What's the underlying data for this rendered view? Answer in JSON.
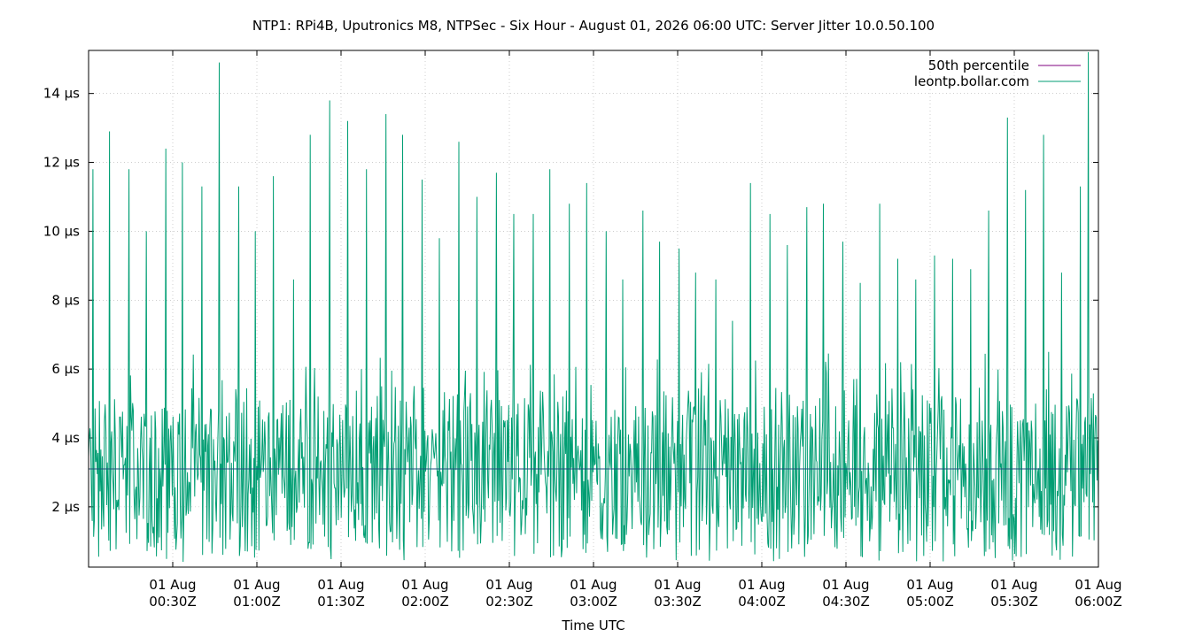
{
  "chart_data": {
    "type": "line",
    "title": "NTP1: RPi4B, Uputronics M8, NTPSec - Six Hour - August 01, 2026 06:00 UTC: Server Jitter 10.0.50.100",
    "xlabel": "Time UTC",
    "ylabel": "",
    "x_range_minutes": [
      0,
      360
    ],
    "ylim": [
      0.25,
      15.25
    ],
    "y_unit": "µs",
    "y_ticks": [
      {
        "value": 2,
        "label": "2 µs"
      },
      {
        "value": 4,
        "label": "4 µs"
      },
      {
        "value": 6,
        "label": "6 µs"
      },
      {
        "value": 8,
        "label": "8 µs"
      },
      {
        "value": 10,
        "label": "10 µs"
      },
      {
        "value": 12,
        "label": "12 µs"
      },
      {
        "value": 14,
        "label": "14 µs"
      }
    ],
    "x_ticks": [
      {
        "minute": 30,
        "line1": "01 Aug",
        "line2": "00:30Z"
      },
      {
        "minute": 60,
        "line1": "01 Aug",
        "line2": "01:00Z"
      },
      {
        "minute": 90,
        "line1": "01 Aug",
        "line2": "01:30Z"
      },
      {
        "minute": 120,
        "line1": "01 Aug",
        "line2": "02:00Z"
      },
      {
        "minute": 150,
        "line1": "01 Aug",
        "line2": "02:30Z"
      },
      {
        "minute": 180,
        "line1": "01 Aug",
        "line2": "03:00Z"
      },
      {
        "minute": 210,
        "line1": "01 Aug",
        "line2": "03:30Z"
      },
      {
        "minute": 240,
        "line1": "01 Aug",
        "line2": "04:00Z"
      },
      {
        "minute": 270,
        "line1": "01 Aug",
        "line2": "04:30Z"
      },
      {
        "minute": 300,
        "line1": "01 Aug",
        "line2": "05:00Z"
      },
      {
        "minute": 330,
        "line1": "01 Aug",
        "line2": "05:30Z"
      },
      {
        "minute": 360,
        "line1": "01 Aug",
        "line2": "06:00Z"
      }
    ],
    "grid": true,
    "legend_position": "top-right",
    "series": [
      {
        "name": "50th percentile",
        "color": "#7f007f",
        "x": [
          0,
          360
        ],
        "y": [
          3.1,
          3.1
        ]
      },
      {
        "name": "leontp.bollar.com",
        "color": "#009e73",
        "peaks": [
          {
            "x": 1.5,
            "y": 11.8
          },
          {
            "x": 7.5,
            "y": 12.9
          },
          {
            "x": 14.5,
            "y": 11.8
          },
          {
            "x": 20.5,
            "y": 10.0
          },
          {
            "x": 27.5,
            "y": 12.4
          },
          {
            "x": 33.5,
            "y": 12.0
          },
          {
            "x": 40.5,
            "y": 11.3
          },
          {
            "x": 46.5,
            "y": 14.9
          },
          {
            "x": 53.5,
            "y": 11.3
          },
          {
            "x": 59.5,
            "y": 10.0
          },
          {
            "x": 66,
            "y": 11.6
          },
          {
            "x": 73,
            "y": 8.6
          },
          {
            "x": 79,
            "y": 12.8
          },
          {
            "x": 86,
            "y": 13.8
          },
          {
            "x": 92.5,
            "y": 13.2
          },
          {
            "x": 99,
            "y": 11.8
          },
          {
            "x": 106,
            "y": 13.4
          },
          {
            "x": 112,
            "y": 12.8
          },
          {
            "x": 119,
            "y": 11.5
          },
          {
            "x": 125,
            "y": 9.8
          },
          {
            "x": 132,
            "y": 12.6
          },
          {
            "x": 138.5,
            "y": 11.0
          },
          {
            "x": 145.5,
            "y": 11.7
          },
          {
            "x": 151.5,
            "y": 10.5
          },
          {
            "x": 158.5,
            "y": 10.5
          },
          {
            "x": 164.5,
            "y": 11.8
          },
          {
            "x": 171.5,
            "y": 10.8
          },
          {
            "x": 177.5,
            "y": 11.4
          },
          {
            "x": 184.5,
            "y": 10.0
          },
          {
            "x": 190.5,
            "y": 8.6
          },
          {
            "x": 197.5,
            "y": 10.6
          },
          {
            "x": 203.5,
            "y": 9.7
          },
          {
            "x": 210.5,
            "y": 9.5
          },
          {
            "x": 216.5,
            "y": 8.8
          },
          {
            "x": 223.5,
            "y": 8.6
          },
          {
            "x": 229.5,
            "y": 7.4
          },
          {
            "x": 236,
            "y": 11.4
          },
          {
            "x": 243,
            "y": 10.5
          },
          {
            "x": 249,
            "y": 9.6
          },
          {
            "x": 256,
            "y": 10.7
          },
          {
            "x": 262,
            "y": 10.8
          },
          {
            "x": 269,
            "y": 9.7
          },
          {
            "x": 275,
            "y": 8.5
          },
          {
            "x": 282,
            "y": 10.8
          },
          {
            "x": 288.5,
            "y": 9.2
          },
          {
            "x": 295,
            "y": 8.6
          },
          {
            "x": 301.5,
            "y": 9.3
          },
          {
            "x": 308,
            "y": 9.2
          },
          {
            "x": 314.5,
            "y": 8.9
          },
          {
            "x": 321,
            "y": 10.6
          },
          {
            "x": 327.5,
            "y": 13.3
          },
          {
            "x": 334,
            "y": 11.2
          },
          {
            "x": 340.5,
            "y": 12.8
          },
          {
            "x": 347,
            "y": 8.8
          },
          {
            "x": 353.5,
            "y": 11.3
          },
          {
            "x": 356.5,
            "y": 15.2
          }
        ],
        "baseline_range": [
          0.4,
          6.5
        ],
        "typical_median": 3.1
      }
    ]
  }
}
